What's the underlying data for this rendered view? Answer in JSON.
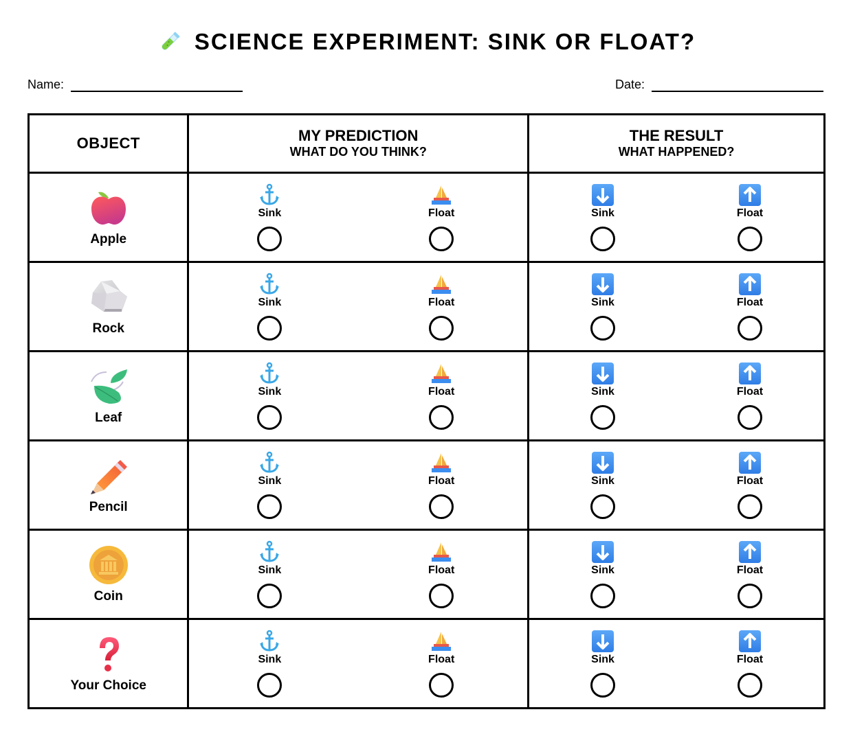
{
  "header": {
    "title": "SCIENCE EXPERIMENT: SINK OR FLOAT?",
    "title_icon": "test-tube-icon"
  },
  "fields": {
    "name_label": "Name:",
    "name_value": "",
    "date_label": "Date:",
    "date_value": ""
  },
  "table": {
    "columns": {
      "object": "OBJECT",
      "prediction_title": "MY PREDICTION",
      "prediction_sub": "WHAT DO YOU THINK?",
      "result_title": "THE RESULT",
      "result_sub": "WHAT HAPPENED?"
    },
    "prediction_options": [
      {
        "label": "Sink",
        "icon": "anchor-icon"
      },
      {
        "label": "Float",
        "icon": "sailboat-icon"
      }
    ],
    "result_options": [
      {
        "label": "Sink",
        "icon": "down-arrow-icon"
      },
      {
        "label": "Float",
        "icon": "up-arrow-icon"
      }
    ],
    "rows": [
      {
        "object": "Apple",
        "icon": "apple-icon"
      },
      {
        "object": "Rock",
        "icon": "rock-icon"
      },
      {
        "object": "Leaf",
        "icon": "leaf-icon"
      },
      {
        "object": "Pencil",
        "icon": "pencil-icon"
      },
      {
        "object": "Coin",
        "icon": "coin-icon"
      },
      {
        "object": "Your Choice",
        "icon": "question-mark-icon"
      }
    ]
  },
  "colors": {
    "border": "#000000",
    "anchor": "#3aa7e6",
    "arrow_box": "#3b8df0",
    "apple": "#e8424f",
    "leaf": "#3dbd7d",
    "pencil": "#f4782d",
    "coin": "#f2a93b",
    "question": "#e8304a"
  }
}
